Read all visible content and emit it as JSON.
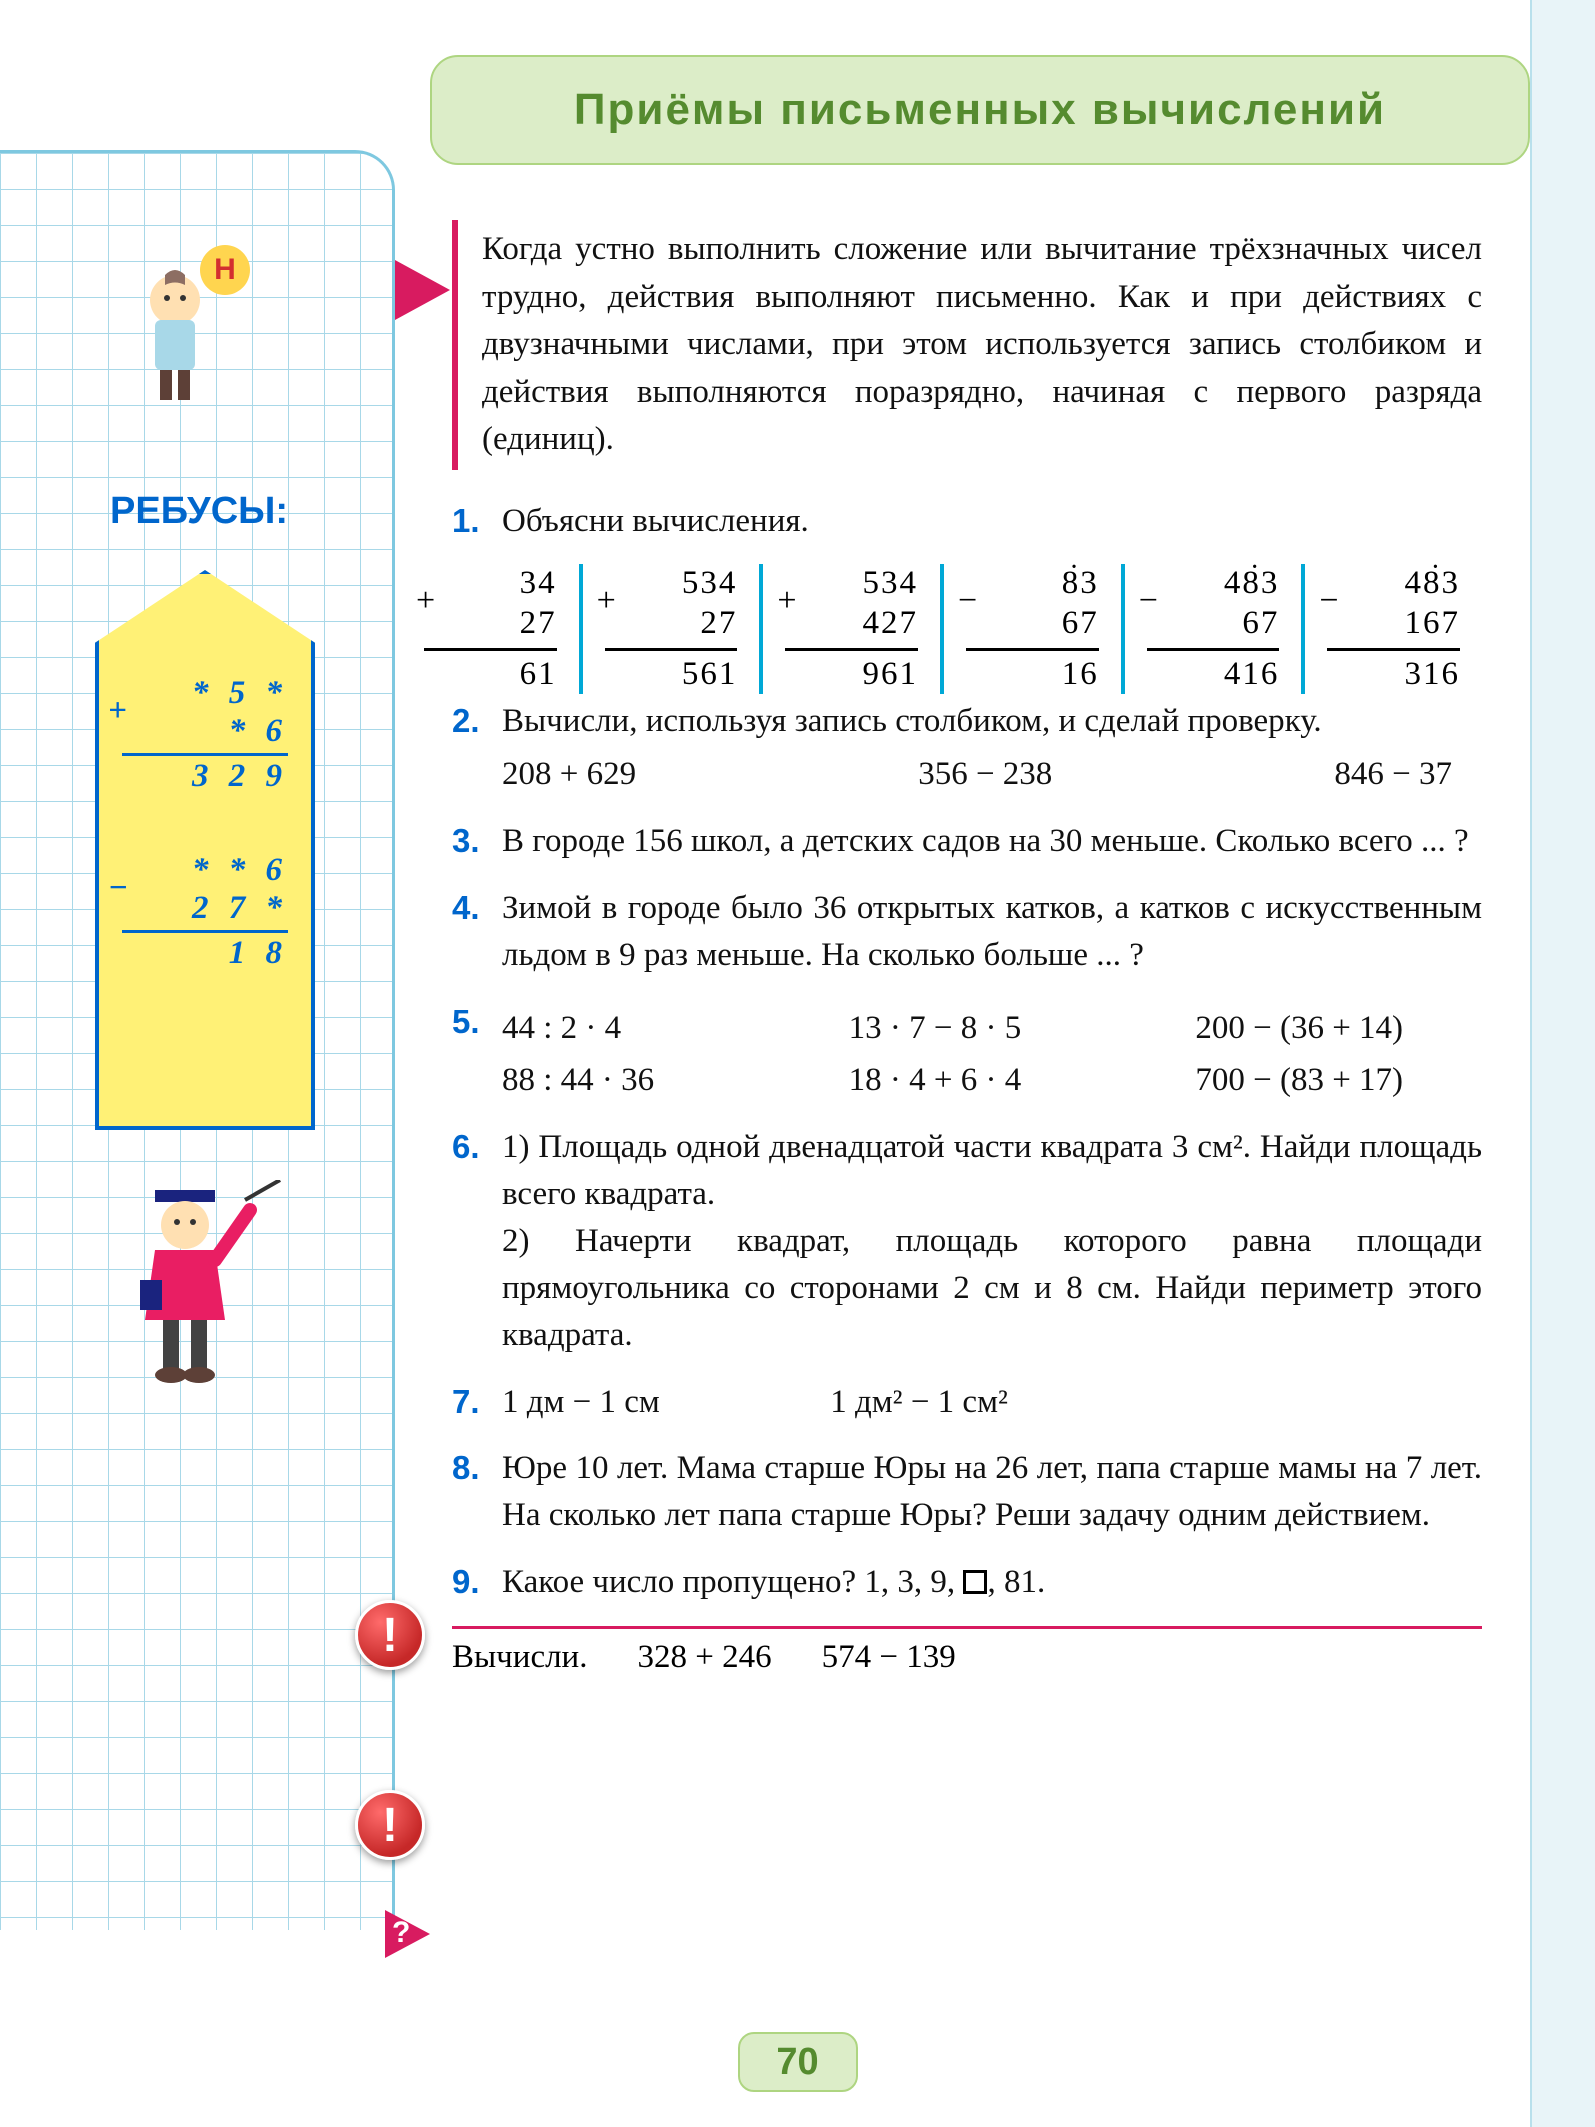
{
  "header": {
    "title": "Приёмы письменных вычислений"
  },
  "sidebar": {
    "badge_letter": "Н",
    "rebus_label": "РЕБУСЫ:",
    "rebus1": {
      "op": "+",
      "a": "* 5 *",
      "b": "* 6",
      "r": "3 2 9"
    },
    "rebus2": {
      "op": "−",
      "a": "* * 6",
      "b": "2 7 *",
      "r": "1 8"
    }
  },
  "intro": "Когда устно выполнить сложение или вычитание трёхзначных чисел трудно, действия выполняют письменно. Как и при действиях с двузначными числами, при этом используется запись столбиком и действия выполняются поразрядно, начиная с первого разряда (единиц).",
  "task1": {
    "num": "1.",
    "text": "Объясни вычисления.",
    "calcs": [
      {
        "op": "+",
        "a": "34",
        "b": "27",
        "r": "61",
        "dot": false
      },
      {
        "op": "+",
        "a": "534",
        "b": "27",
        "r": "561",
        "dot": false
      },
      {
        "op": "+",
        "a": "534",
        "b": "427",
        "r": "961",
        "dot": false
      },
      {
        "op": "−",
        "a": "83",
        "b": "67",
        "r": "16",
        "dot": true
      },
      {
        "op": "−",
        "a": "483",
        "b": "67",
        "r": "416",
        "dot": true
      },
      {
        "op": "−",
        "a": "483",
        "b": "167",
        "r": "316",
        "dot": true
      }
    ]
  },
  "task2": {
    "num": "2.",
    "text": "Вычисли, используя запись столбиком, и сделай проверку.",
    "exprs": [
      "208 + 629",
      "356 − 238",
      "846 − 37"
    ]
  },
  "task3": {
    "num": "3.",
    "text": "В городе 156 школ, а детских садов на 30 меньше. Сколько всего ... ?"
  },
  "task4": {
    "num": "4.",
    "text": "Зимой в городе было 36 открытых катков, а катков с искусственным льдом в 9 раз меньше. На сколько больше ... ?"
  },
  "task5": {
    "num": "5.",
    "row1": [
      "44 : 2 · 4",
      "13 · 7 − 8 · 5",
      "200 − (36 + 14)"
    ],
    "row2": [
      "88 : 44 · 36",
      "18 · 4 + 6 · 4",
      "700 − (83 + 17)"
    ]
  },
  "task6": {
    "num": "6.",
    "p1": "1) Площадь одной двенадцатой части квадрата 3 см². Найди площадь всего квадрата.",
    "p2": "2) Начерти квадрат, площадь которого равна площади прямоугольника со сторонами 2 см и 8 см. Найди периметр этого квадрата."
  },
  "task7": {
    "num": "7.",
    "a": "1 дм − 1 см",
    "b": "1 дм² − 1 см²"
  },
  "task8": {
    "num": "8.",
    "text": "Юре 10 лет. Мама старше Юры на 26 лет, папа старше мамы на 7 лет. На сколько лет папа старше Юры? Реши задачу одним действием."
  },
  "task9": {
    "num": "9.",
    "text_before": "Какое число пропущено? 1, 3, 9, ",
    "text_after": ", 81."
  },
  "footer": {
    "label": "Вычисли.",
    "a": "328 + 246",
    "b": "574 − 139"
  },
  "page_number": "70",
  "colors": {
    "header_bg": "#dcedc8",
    "accent_pink": "#d81b60",
    "task_blue": "#0066cc",
    "divider_cyan": "#00a8d6"
  }
}
